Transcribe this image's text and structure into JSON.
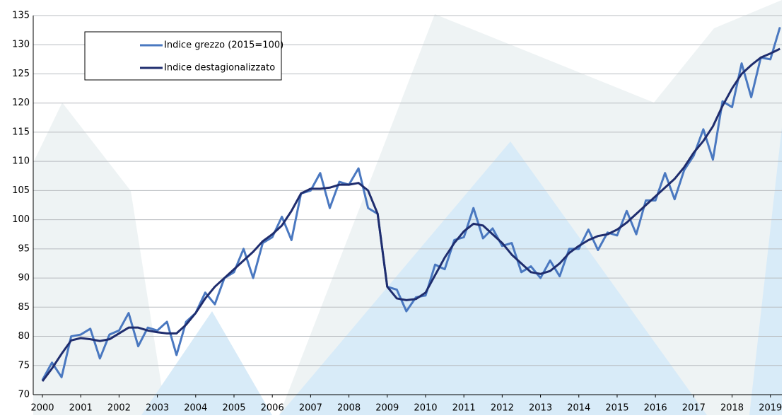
{
  "chart_data": {
    "type": "line",
    "x": [
      2000,
      2000.25,
      2000.5,
      2000.75,
      2001,
      2001.25,
      2001.5,
      2001.75,
      2002,
      2002.25,
      2002.5,
      2002.75,
      2003,
      2003.25,
      2003.5,
      2003.75,
      2004,
      2004.25,
      2004.5,
      2004.75,
      2005,
      2005.25,
      2005.5,
      2005.75,
      2006,
      2006.25,
      2006.5,
      2006.75,
      2007,
      2007.25,
      2007.5,
      2007.75,
      2008,
      2008.25,
      2008.5,
      2008.75,
      2009,
      2009.25,
      2009.5,
      2009.75,
      2010,
      2010.25,
      2010.5,
      2010.75,
      2011,
      2011.25,
      2011.5,
      2011.75,
      2012,
      2012.25,
      2012.5,
      2012.75,
      2013,
      2013.25,
      2013.5,
      2013.75,
      2014,
      2014.25,
      2014.5,
      2014.75,
      2015,
      2015.25,
      2015.5,
      2015.75,
      2016,
      2016.25,
      2016.5,
      2016.75,
      2017,
      2017.25,
      2017.5,
      2017.75,
      2018,
      2018.25,
      2018.5,
      2018.75,
      2019,
      2019.25
    ],
    "series": [
      {
        "name": "Indice grezzo (2015=100)",
        "color": "#4a78c0",
        "values": [
          72.5,
          75.5,
          73,
          80,
          80.3,
          81.3,
          76.2,
          80.3,
          81,
          84,
          78.3,
          81.5,
          81,
          82.5,
          76.8,
          82.5,
          84,
          87.5,
          85.5,
          90,
          91,
          95,
          90,
          96,
          97,
          100.5,
          96.5,
          104.5,
          105,
          108,
          102,
          106.5,
          106,
          108.8,
          102,
          101,
          88.5,
          88,
          84.3,
          86.7,
          87,
          92.3,
          91.5,
          96.5,
          97,
          102,
          96.8,
          98.5,
          95.5,
          96,
          91,
          92,
          90,
          93,
          90.3,
          95,
          95,
          98.3,
          94.8,
          97.8,
          97.3,
          101.5,
          97.5,
          103.3,
          103.3,
          108,
          103.5,
          108.5,
          111,
          115.5,
          110.3,
          120.3,
          119.3,
          126.8,
          121,
          127.8,
          127.5,
          133
        ]
      },
      {
        "name": "Indice destagionalizzato",
        "color": "#1f2d6e",
        "values": [
          72.3,
          74.5,
          77,
          79.3,
          79.7,
          79.5,
          79.2,
          79.5,
          80.5,
          81.5,
          81.5,
          81,
          80.7,
          80.5,
          80.5,
          82,
          84,
          86.5,
          88.5,
          90,
          91.5,
          93,
          94.5,
          96.3,
          97.5,
          99,
          101.5,
          104.5,
          105.3,
          105.3,
          105.5,
          106,
          106,
          106.3,
          105,
          101,
          88.5,
          86.5,
          86.2,
          86.4,
          87.5,
          90.5,
          93.5,
          96,
          98,
          99.3,
          99,
          97.5,
          96,
          94,
          92.5,
          91,
          90.7,
          91.2,
          92.5,
          94.3,
          95.5,
          96.5,
          97.2,
          97.5,
          98.3,
          99.5,
          101,
          102.5,
          104,
          105.5,
          107,
          109,
          111.5,
          113.5,
          116,
          119.5,
          122.5,
          125,
          126.5,
          127.8,
          128.5,
          129.3
        ]
      }
    ],
    "xlim": [
      1999.76,
      2019.3
    ],
    "xticks": [
      2000,
      2001,
      2002,
      2003,
      2004,
      2005,
      2006,
      2007,
      2008,
      2009,
      2010,
      2011,
      2012,
      2013,
      2014,
      2015,
      2016,
      2017,
      2018,
      2019
    ],
    "ylim": [
      70,
      135
    ],
    "yticks": [
      70,
      75,
      80,
      85,
      90,
      95,
      100,
      105,
      110,
      115,
      120,
      125,
      130,
      135
    ],
    "grid": true,
    "legend": "upper-left"
  }
}
